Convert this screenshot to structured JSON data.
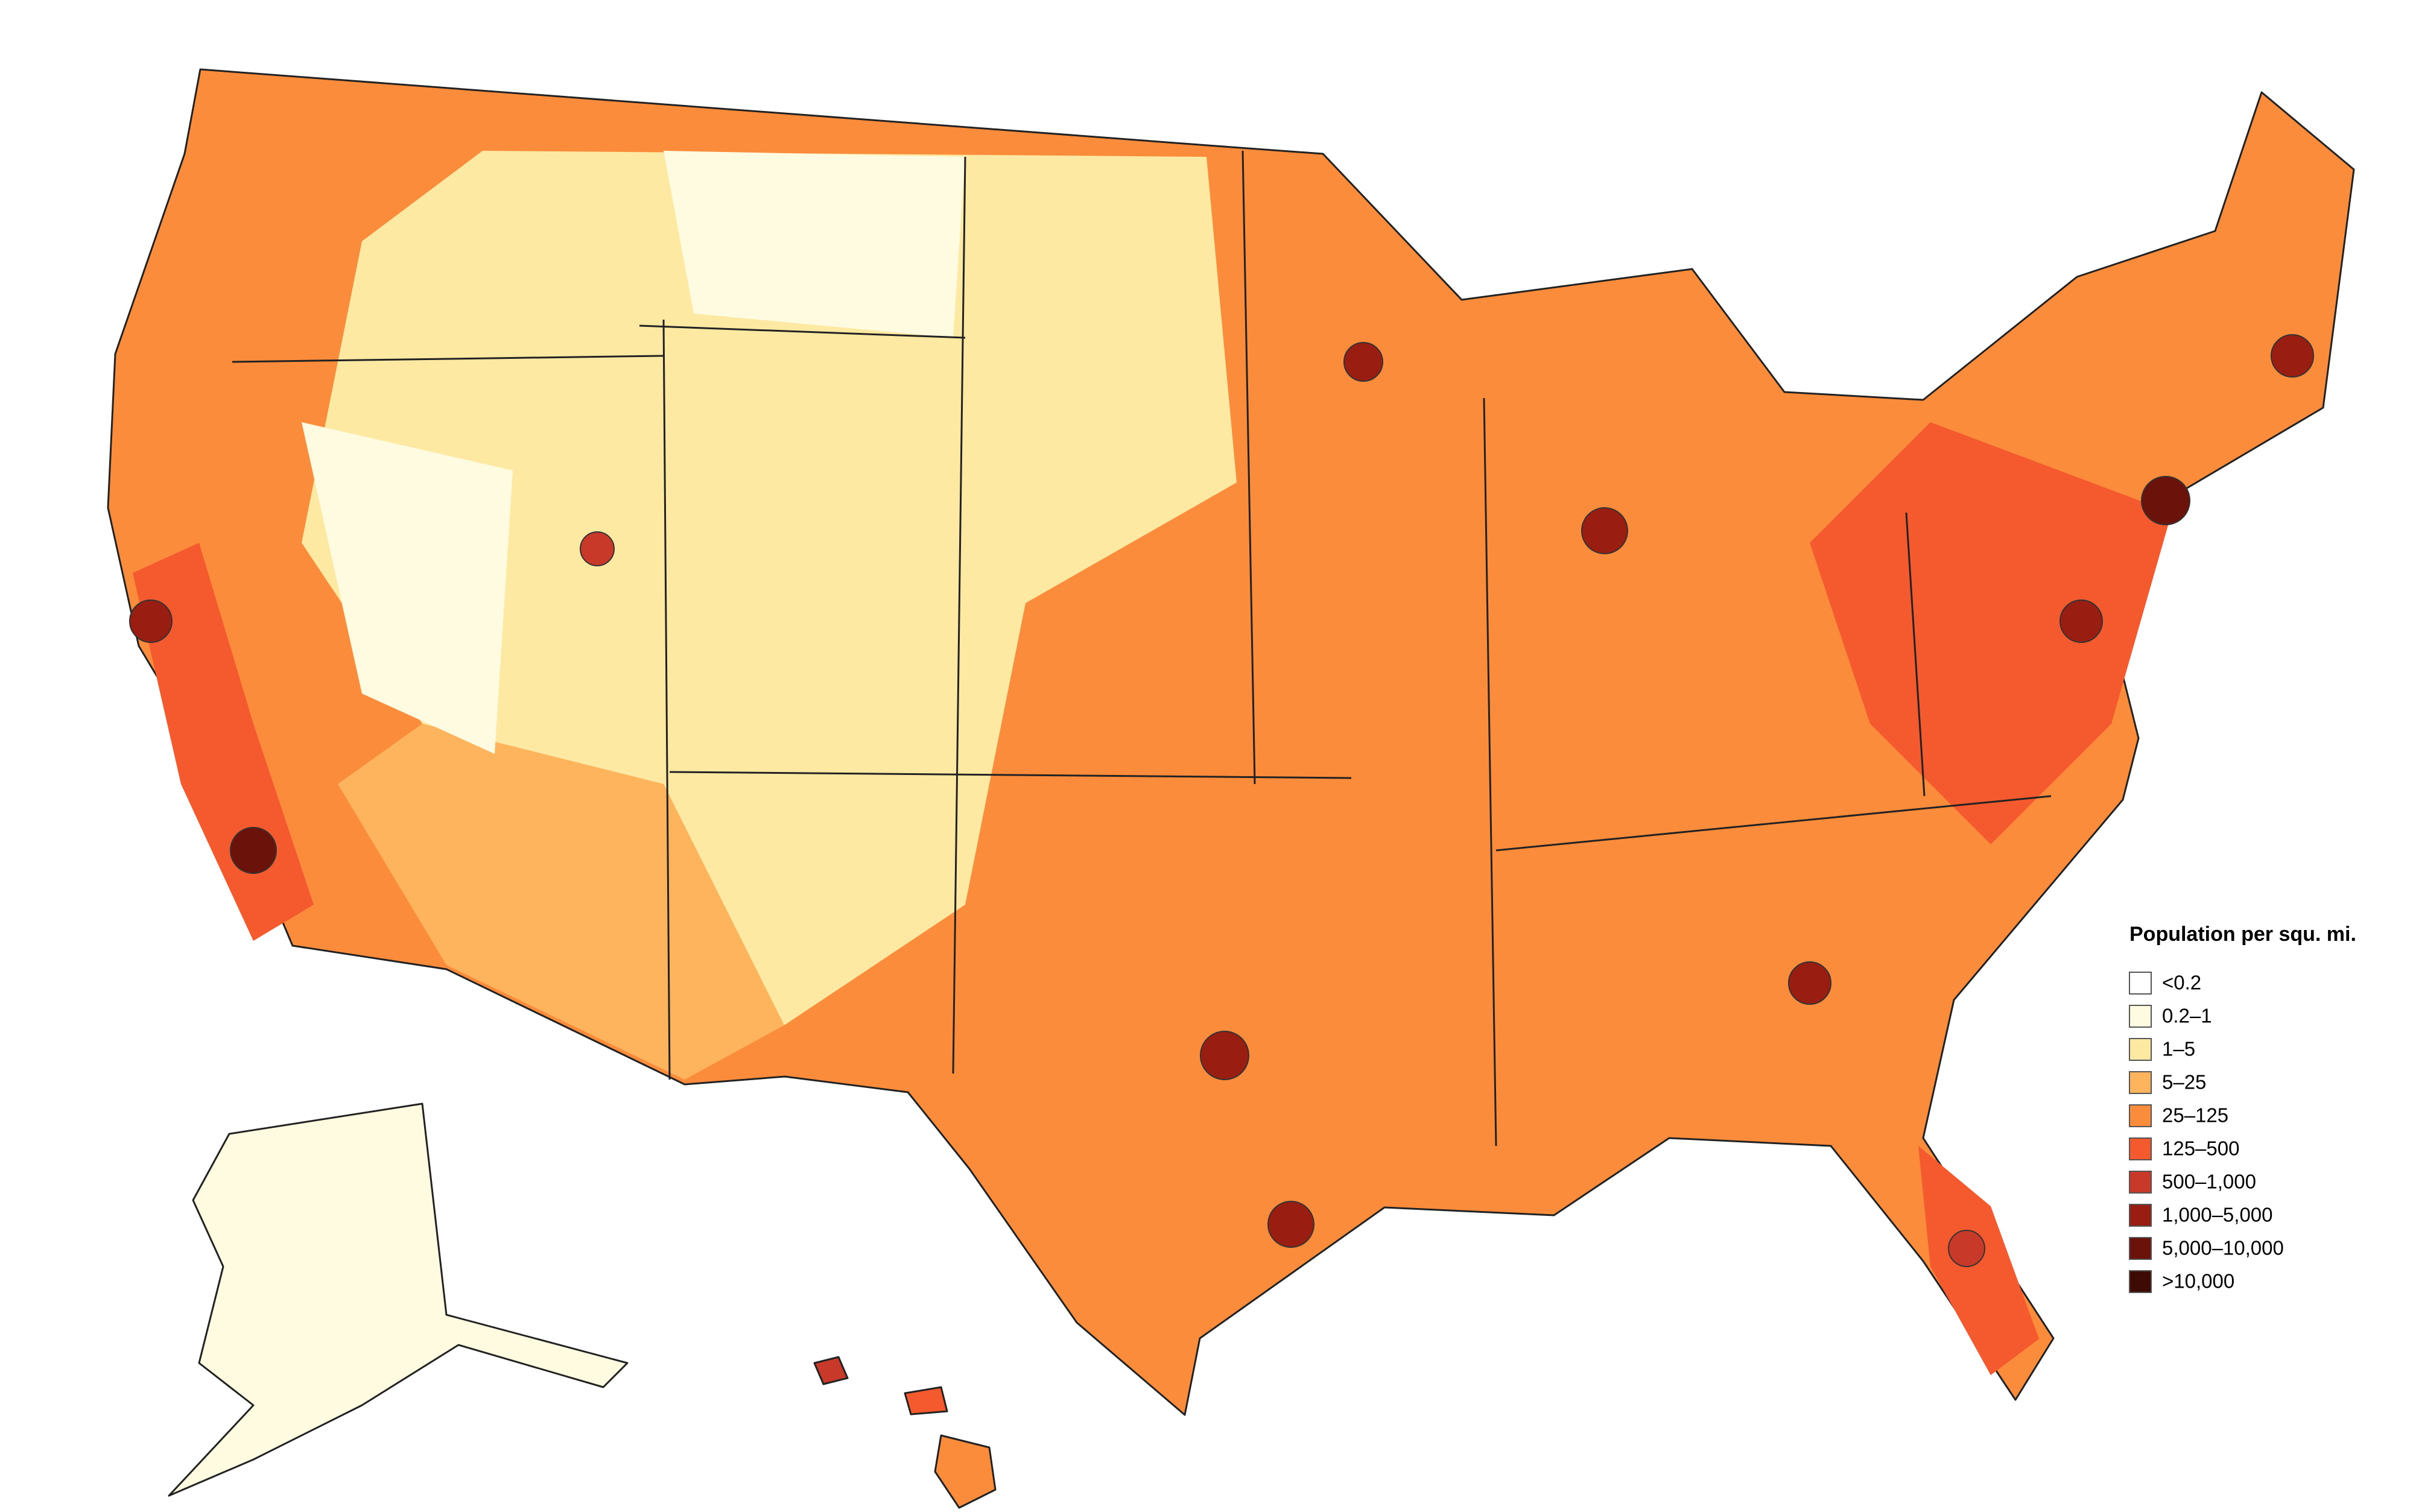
{
  "legend": {
    "title": "Population per squ. mi.",
    "items": [
      {
        "label": "<0.2",
        "color": "#ffffff"
      },
      {
        "label": "0.2–1",
        "color": "#fffbe0"
      },
      {
        "label": "1–5",
        "color": "#fee9a3"
      },
      {
        "label": "5–25",
        "color": "#fdb45c"
      },
      {
        "label": "25–125",
        "color": "#fb8c3c"
      },
      {
        "label": "125–500",
        "color": "#f55a2e"
      },
      {
        "label": "500–1,000",
        "color": "#c8392a"
      },
      {
        "label": "1,000–5,000",
        "color": "#9a1d12"
      },
      {
        "label": "5,000–10,000",
        "color": "#6b120a"
      },
      {
        "label": ">10,000",
        "color": "#3d0a04"
      }
    ]
  }
}
